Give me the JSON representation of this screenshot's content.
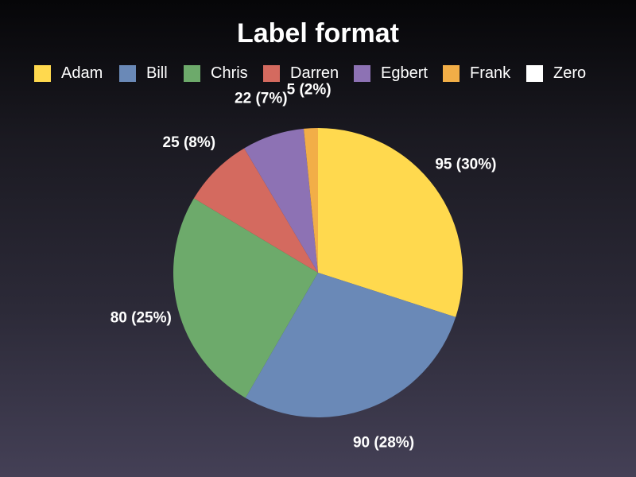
{
  "chart_data": {
    "type": "pie",
    "title": "Label format",
    "legend_position": "top",
    "label_format": "{value} ({percent})",
    "series": [
      {
        "name": "Adam",
        "value": 95,
        "label": "95 (30%)",
        "color": "#FFD94E"
      },
      {
        "name": "Bill",
        "value": 90,
        "label": "90 (28%)",
        "color": "#6A89B7"
      },
      {
        "name": "Chris",
        "value": 80,
        "label": "80 (25%)",
        "color": "#6DAA6B"
      },
      {
        "name": "Darren",
        "value": 25,
        "label": "25 (8%)",
        "color": "#D46A5F"
      },
      {
        "name": "Egbert",
        "value": 22,
        "label": "22 (7%)",
        "color": "#8D72B4"
      },
      {
        "name": "Frank",
        "value": 5,
        "label": "5 (2%)",
        "color": "#F2AE47"
      },
      {
        "name": "Zero",
        "value": 0,
        "label": "",
        "color": "#FFFFFF"
      }
    ]
  }
}
